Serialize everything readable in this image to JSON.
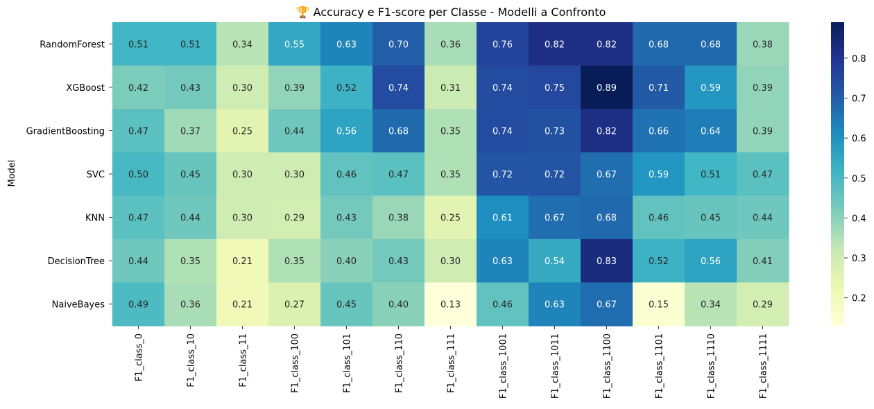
{
  "chart_data": {
    "type": "heatmap",
    "title": "🏆 Accuracy e F1-score per Classe - Modelli a Confronto",
    "ylabel": "Model",
    "xlabel": "",
    "colormap": "YlGnBu",
    "annotation_format": "0.00",
    "columns": [
      "F1_class_0",
      "F1_class_10",
      "F1_class_11",
      "F1_class_100",
      "F1_class_101",
      "F1_class_110",
      "F1_class_111",
      "F1_class_1001",
      "F1_class_1011",
      "F1_class_1100",
      "F1_class_1101",
      "F1_class_1110",
      "F1_class_1111"
    ],
    "rows": [
      "RandomForest",
      "XGBoost",
      "GradientBoosting",
      "SVC",
      "KNN",
      "DecisionTree",
      "NaiveBayes"
    ],
    "values": [
      [
        0.51,
        0.51,
        0.34,
        0.55,
        0.63,
        0.7,
        0.36,
        0.76,
        0.82,
        0.82,
        0.68,
        0.68,
        0.38
      ],
      [
        0.42,
        0.43,
        0.3,
        0.39,
        0.52,
        0.74,
        0.31,
        0.74,
        0.75,
        0.89,
        0.71,
        0.59,
        0.39
      ],
      [
        0.47,
        0.37,
        0.25,
        0.44,
        0.56,
        0.68,
        0.35,
        0.74,
        0.73,
        0.82,
        0.66,
        0.64,
        0.39
      ],
      [
        0.5,
        0.45,
        0.3,
        0.3,
        0.46,
        0.47,
        0.35,
        0.72,
        0.72,
        0.67,
        0.59,
        0.51,
        0.47
      ],
      [
        0.47,
        0.44,
        0.3,
        0.29,
        0.43,
        0.38,
        0.25,
        0.61,
        0.67,
        0.68,
        0.46,
        0.45,
        0.44
      ],
      [
        0.44,
        0.35,
        0.21,
        0.35,
        0.4,
        0.43,
        0.3,
        0.63,
        0.54,
        0.83,
        0.52,
        0.56,
        0.41
      ],
      [
        0.49,
        0.36,
        0.21,
        0.27,
        0.45,
        0.4,
        0.13,
        0.46,
        0.63,
        0.67,
        0.15,
        0.34,
        0.29
      ]
    ],
    "colorbar": {
      "range": [
        0.13,
        0.89
      ],
      "ticks": [
        0.2,
        0.3,
        0.4,
        0.5,
        0.6,
        0.7,
        0.8
      ],
      "tick_labels": [
        "0.2",
        "0.3",
        "0.4",
        "0.5",
        "0.6",
        "0.7",
        "0.8"
      ]
    }
  }
}
